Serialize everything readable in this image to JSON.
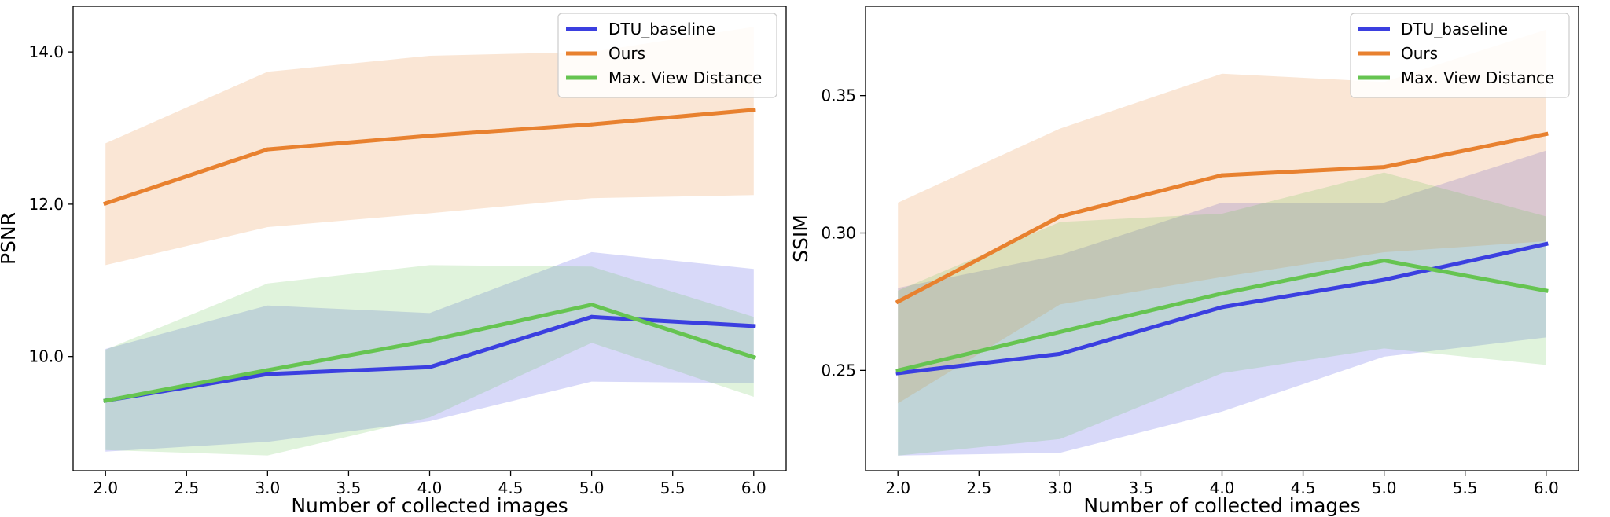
{
  "chart_data": [
    {
      "type": "line",
      "ylabel": "PSNR",
      "xlabel": "Number of collected images",
      "x": [
        2.0,
        3.0,
        4.0,
        5.0,
        6.0
      ],
      "xlim": [
        1.8,
        6.2
      ],
      "ylim": [
        8.5,
        14.6
      ],
      "xticks": [
        2.0,
        2.5,
        3.0,
        3.5,
        4.0,
        4.5,
        5.0,
        5.5,
        6.0
      ],
      "xtick_labels": [
        "2.0",
        "2.5",
        "3.0",
        "3.5",
        "4.0",
        "4.5",
        "5.0",
        "5.5",
        "6.0"
      ],
      "yticks": [
        10.0,
        12.0,
        14.0
      ],
      "ytick_labels": [
        "10.0",
        "12.0",
        "14.0"
      ],
      "legend_position": "top-right",
      "series": [
        {
          "name": "DTU_baseline",
          "color": "#3b3fe0",
          "values": [
            9.42,
            9.77,
            9.86,
            10.52,
            10.4
          ],
          "lower": [
            8.75,
            8.88,
            9.15,
            9.67,
            9.65
          ],
          "upper": [
            10.1,
            10.67,
            10.57,
            11.37,
            11.15
          ]
        },
        {
          "name": "Ours",
          "color": "#e8812f",
          "values": [
            12.01,
            12.72,
            12.9,
            13.05,
            13.24
          ],
          "lower": [
            11.2,
            11.7,
            11.88,
            12.08,
            12.12
          ],
          "upper": [
            12.8,
            13.74,
            13.95,
            14.0,
            14.33
          ]
        },
        {
          "name": "Max. View Distance",
          "color": "#66c451",
          "values": [
            9.42,
            9.82,
            10.21,
            10.68,
            9.99
          ],
          "lower": [
            8.77,
            8.7,
            9.2,
            10.18,
            9.47
          ],
          "upper": [
            10.09,
            10.96,
            11.2,
            11.18,
            10.52
          ]
        }
      ]
    },
    {
      "type": "line",
      "ylabel": "SSIM",
      "xlabel": "Number of collected images",
      "x": [
        2.0,
        3.0,
        4.0,
        5.0,
        6.0
      ],
      "xlim": [
        1.8,
        6.2
      ],
      "ylim": [
        0.2135,
        0.3825
      ],
      "xticks": [
        2.0,
        2.5,
        3.0,
        3.5,
        4.0,
        4.5,
        5.0,
        5.5,
        6.0
      ],
      "xtick_labels": [
        "2.0",
        "2.5",
        "3.0",
        "3.5",
        "4.0",
        "4.5",
        "5.0",
        "5.5",
        "6.0"
      ],
      "yticks": [
        0.25,
        0.3,
        0.35
      ],
      "ytick_labels": [
        "0.25",
        "0.30",
        "0.35"
      ],
      "legend_position": "top-right",
      "series": [
        {
          "name": "DTU_baseline",
          "color": "#3b3fe0",
          "values": [
            0.249,
            0.256,
            0.273,
            0.283,
            0.296
          ],
          "lower": [
            0.219,
            0.22,
            0.235,
            0.255,
            0.262
          ],
          "upper": [
            0.28,
            0.292,
            0.311,
            0.311,
            0.33
          ]
        },
        {
          "name": "Ours",
          "color": "#e8812f",
          "values": [
            0.275,
            0.306,
            0.321,
            0.324,
            0.336
          ],
          "lower": [
            0.238,
            0.274,
            0.284,
            0.293,
            0.297
          ],
          "upper": [
            0.311,
            0.338,
            0.358,
            0.355,
            0.374
          ]
        },
        {
          "name": "Max. View Distance",
          "color": "#66c451",
          "values": [
            0.25,
            0.264,
            0.278,
            0.29,
            0.279
          ],
          "lower": [
            0.219,
            0.225,
            0.249,
            0.258,
            0.252
          ],
          "upper": [
            0.279,
            0.304,
            0.307,
            0.322,
            0.306
          ]
        }
      ]
    }
  ]
}
